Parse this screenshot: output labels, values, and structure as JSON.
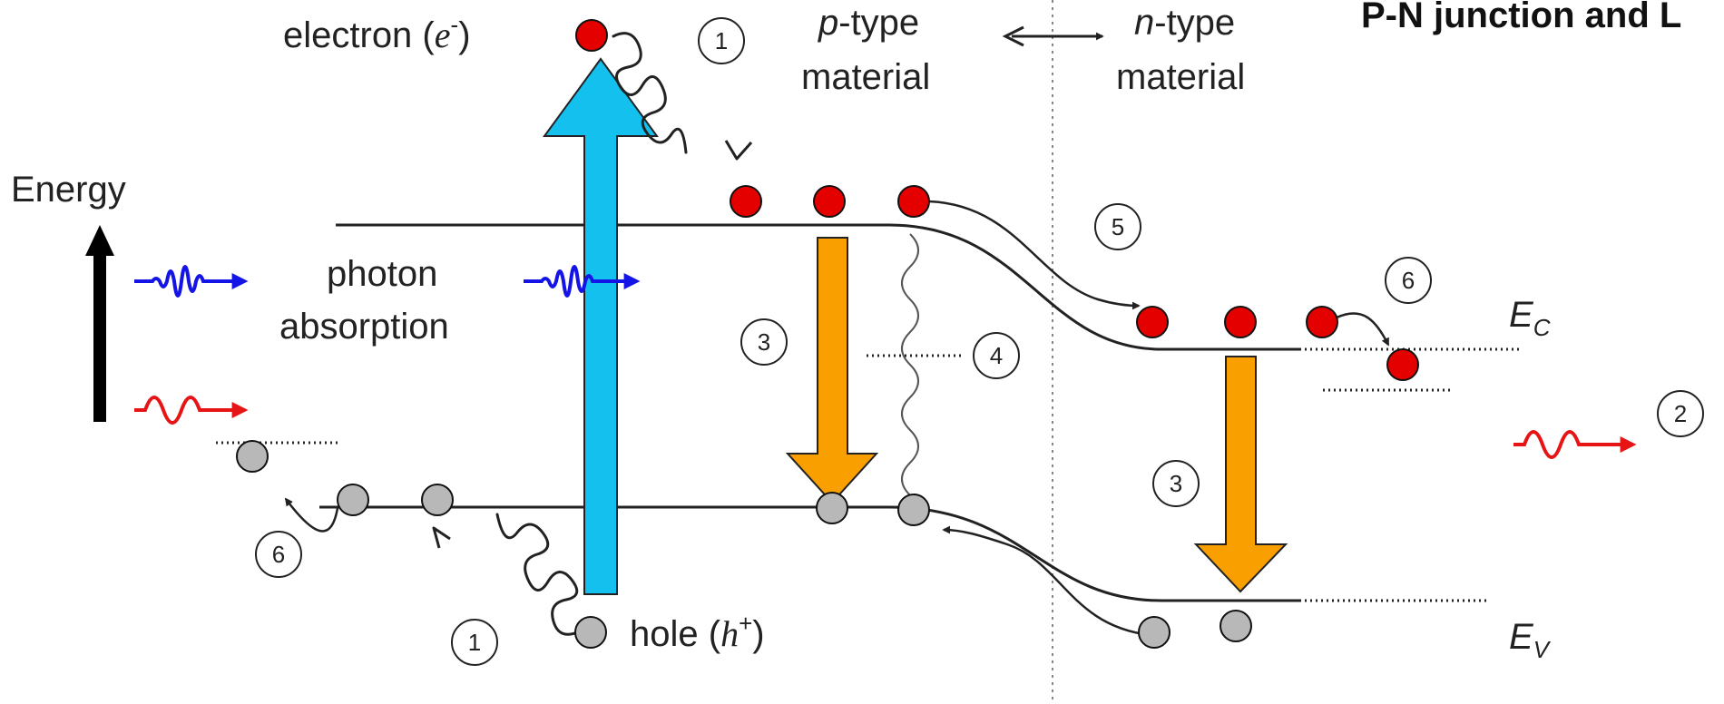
{
  "title": "P-N junction and L",
  "labels": {
    "energy": "Energy",
    "photon_line1": "photon",
    "photon_line2": "absorption",
    "electron_prefix": "electron (",
    "electron_symbol": "e",
    "electron_sup": "-",
    "electron_suffix": ")",
    "hole_prefix": "hole (",
    "hole_symbol": "h",
    "hole_sup": "+",
    "hole_suffix": ")",
    "p_italic": "p",
    "p_rest": "-type",
    "p_line2": "material",
    "n_italic": "n",
    "n_rest": "-type",
    "n_line2": "material",
    "ec_main": "E",
    "ec_sub": "C",
    "ev_main": "E",
    "ev_sub": "V"
  },
  "step_numbers": {
    "one_top": "1",
    "one_bottom": "1",
    "two": "2",
    "three_left": "3",
    "three_right": "3",
    "four": "4",
    "five": "5",
    "six_left": "6",
    "six_right": "6"
  },
  "colors": {
    "electron": "#e50000",
    "hole": "#b8b8b8",
    "absorption_arrow": "#14c0ee",
    "recombination_arrow": "#f9a000",
    "photon_blue": "#1414e6",
    "photon_red": "#e61414",
    "band_line": "#222222"
  }
}
